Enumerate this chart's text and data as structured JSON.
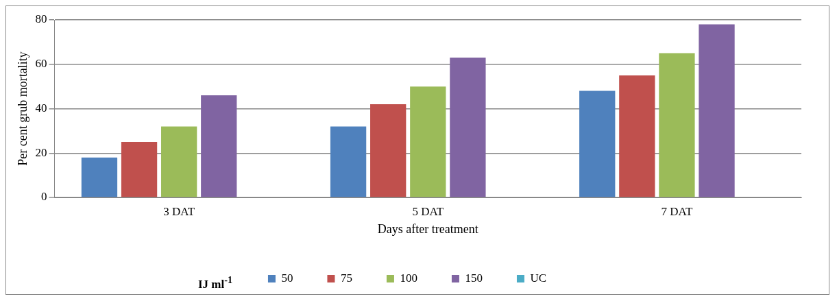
{
  "chart_data": {
    "type": "bar",
    "xlabel": "Days after treatment",
    "ylabel": "Per cent grub mortality",
    "legend_title": "IJ ml$^{-1}$",
    "categories": [
      "3 DAT",
      "5 DAT",
      "7 DAT"
    ],
    "series": [
      {
        "name": "50",
        "color": "#4f81bd",
        "values": [
          18,
          32,
          48
        ]
      },
      {
        "name": "75",
        "color": "#c0504d",
        "values": [
          25,
          42,
          55
        ]
      },
      {
        "name": "100",
        "color": "#9bbb59",
        "values": [
          32,
          50,
          65
        ]
      },
      {
        "name": "150",
        "color": "#8064a2",
        "values": [
          46,
          63,
          78
        ]
      },
      {
        "name": "UC",
        "color": "#4bacc6",
        "values": [
          0,
          0,
          0
        ]
      }
    ],
    "ylim": [
      0,
      80
    ],
    "yticks": [
      0,
      20,
      40,
      60,
      80
    ],
    "grid": "y",
    "legend": "bottom"
  }
}
